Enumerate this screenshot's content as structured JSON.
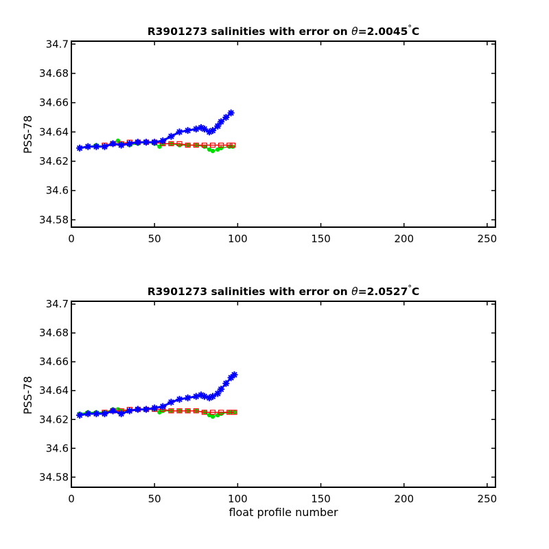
{
  "chart_data": [
    {
      "type": "line",
      "title_prefix": "R3901273 salinities with error on ",
      "title_theta": "θ",
      "title_value": "=2.0045",
      "title_degree": "°",
      "title_unit": "C",
      "xlabel": "",
      "ylabel": "PSS-78",
      "xlim": [
        0,
        255
      ],
      "ylim": [
        34.575,
        34.702
      ],
      "xticks": [
        0,
        50,
        100,
        150,
        200,
        250
      ],
      "yticks": [
        34.58,
        34.6,
        34.62,
        34.64,
        34.66,
        34.68,
        34.7
      ],
      "ytick_labels": [
        "34.58",
        "34.6",
        "34.62",
        "34.64",
        "34.66",
        "34.68",
        "34.7"
      ],
      "series": [
        {
          "color": "#00e000",
          "marker": "dot",
          "x": [
            5,
            10,
            15,
            20,
            25,
            28,
            30,
            35,
            40,
            45,
            50,
            53,
            55,
            60,
            65,
            70,
            75,
            80,
            83,
            85,
            88,
            90,
            95,
            97
          ],
          "y": [
            34.629,
            34.63,
            34.631,
            34.63,
            34.632,
            34.634,
            34.632,
            34.631,
            34.632,
            34.633,
            34.632,
            34.63,
            34.632,
            34.632,
            34.631,
            34.631,
            34.631,
            34.63,
            34.628,
            34.627,
            34.628,
            34.629,
            34.63,
            34.63
          ]
        },
        {
          "color": "#ff0000",
          "marker": "square",
          "x": [
            20,
            25,
            30,
            35,
            40,
            45,
            50,
            55,
            60,
            65,
            70,
            75,
            80,
            85,
            90,
            95,
            97
          ],
          "y": [
            34.631,
            34.632,
            34.632,
            34.633,
            34.633,
            34.633,
            34.633,
            34.632,
            34.632,
            34.632,
            34.631,
            34.631,
            34.631,
            34.631,
            34.631,
            34.631,
            34.631
          ]
        },
        {
          "color": "#0000ff",
          "marker": "star",
          "x": [
            5,
            10,
            15,
            20,
            25,
            30,
            35,
            40,
            45,
            50,
            55,
            60,
            65,
            70,
            75,
            78,
            80,
            83,
            85,
            88,
            90,
            93,
            96
          ],
          "y": [
            34.629,
            34.63,
            34.63,
            34.63,
            34.632,
            34.631,
            34.632,
            34.633,
            34.633,
            34.633,
            34.634,
            34.637,
            34.64,
            34.641,
            34.642,
            34.643,
            34.642,
            34.64,
            34.641,
            34.644,
            34.647,
            34.65,
            34.653
          ]
        }
      ]
    },
    {
      "type": "line",
      "title_prefix": "R3901273 salinities with error on ",
      "title_theta": "θ",
      "title_value": "=2.0527",
      "title_degree": "°",
      "title_unit": "C",
      "xlabel": "float profile number",
      "ylabel": "PSS-78",
      "xlim": [
        0,
        255
      ],
      "ylim": [
        34.573,
        34.702
      ],
      "xticks": [
        0,
        50,
        100,
        150,
        200,
        250
      ],
      "yticks": [
        34.58,
        34.6,
        34.62,
        34.64,
        34.66,
        34.68,
        34.7
      ],
      "ytick_labels": [
        "34.58",
        "34.6",
        "34.62",
        "34.64",
        "34.66",
        "34.68",
        "34.7"
      ],
      "series": [
        {
          "color": "#00e000",
          "marker": "dot",
          "x": [
            5,
            10,
            15,
            20,
            25,
            28,
            30,
            35,
            40,
            45,
            50,
            53,
            55,
            60,
            65,
            70,
            75,
            80,
            83,
            85,
            88,
            90,
            95,
            98
          ],
          "y": [
            34.624,
            34.625,
            34.625,
            34.625,
            34.627,
            34.627,
            34.626,
            34.626,
            34.627,
            34.627,
            34.627,
            34.625,
            34.626,
            34.626,
            34.626,
            34.626,
            34.626,
            34.625,
            34.623,
            34.622,
            34.623,
            34.624,
            34.625,
            34.625
          ]
        },
        {
          "color": "#ff0000",
          "marker": "square",
          "x": [
            20,
            25,
            30,
            35,
            40,
            45,
            50,
            55,
            60,
            65,
            70,
            75,
            80,
            85,
            90,
            95,
            98
          ],
          "y": [
            34.625,
            34.626,
            34.626,
            34.627,
            34.627,
            34.627,
            34.627,
            34.627,
            34.626,
            34.626,
            34.626,
            34.626,
            34.625,
            34.625,
            34.625,
            34.625,
            34.625
          ]
        },
        {
          "color": "#0000ff",
          "marker": "star",
          "x": [
            5,
            10,
            15,
            20,
            25,
            30,
            35,
            40,
            45,
            50,
            55,
            60,
            65,
            70,
            75,
            78,
            80,
            83,
            85,
            88,
            90,
            93,
            96,
            98
          ],
          "y": [
            34.623,
            34.624,
            34.624,
            34.624,
            34.626,
            34.624,
            34.626,
            34.627,
            34.627,
            34.628,
            34.629,
            34.632,
            34.634,
            34.635,
            34.636,
            34.637,
            34.636,
            34.635,
            34.636,
            34.638,
            34.641,
            34.645,
            34.649,
            34.651
          ]
        }
      ]
    }
  ]
}
